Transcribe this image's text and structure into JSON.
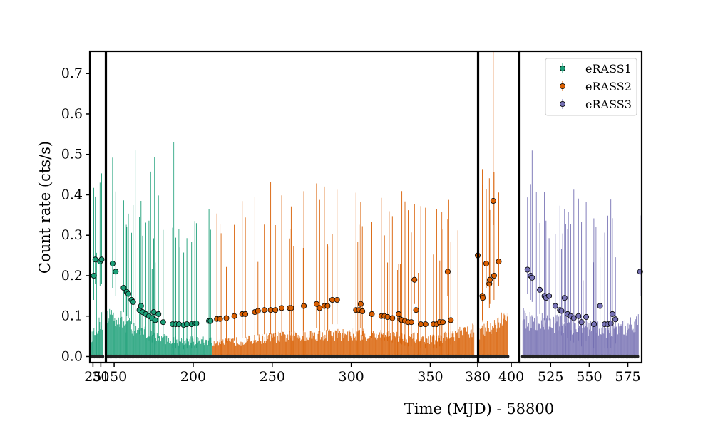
{
  "chart_data": {
    "type": "scatter",
    "xlabel": "Time (MJD) - 58800",
    "ylabel": "Count rate (cts/s)",
    "ylim": [
      -0.015,
      0.755
    ],
    "y_ticks": [
      "0.0",
      "0.1",
      "0.2",
      "0.3",
      "0.4",
      "0.5",
      "0.6",
      "0.7"
    ],
    "legend_position": "top-right",
    "colors": {
      "eRASS1": "#1b9e77",
      "eRASS2": "#d95f02",
      "eRASS3": "#7570b3",
      "axes": "#000000",
      "outlier": "#222222"
    },
    "panels": [
      {
        "xlim": [
          23,
          33
        ],
        "x_ticks": [
          {
            "v": 25,
            "label": "25"
          },
          {
            "v": 30,
            "label": "30"
          }
        ]
      },
      {
        "xlim": [
          145,
          380
        ],
        "x_ticks": [
          {
            "v": 150,
            "label": "150"
          },
          {
            "v": 200,
            "label": "200"
          },
          {
            "v": 250,
            "label": "250"
          },
          {
            "v": 300,
            "label": "300"
          },
          {
            "v": 350,
            "label": "350"
          }
        ]
      },
      {
        "xlim": [
          379,
          405
        ],
        "x_ticks": [
          {
            "v": 380,
            "label": "380"
          },
          {
            "v": 400,
            "label": "400"
          }
        ]
      },
      {
        "xlim": [
          505,
          584
        ],
        "x_ticks": [
          {
            "v": 525,
            "label": "525"
          },
          {
            "v": 550,
            "label": "550"
          },
          {
            "v": 575,
            "label": "575"
          }
        ]
      }
    ],
    "series": [
      {
        "name": "eRASS1",
        "points": [
          {
            "x": 25.5,
            "y": 0.2
          },
          {
            "x": 26.5,
            "y": 0.24
          },
          {
            "x": 29.5,
            "y": 0.235
          },
          {
            "x": 30.5,
            "y": 0.24
          },
          {
            "x": 149,
            "y": 0.23
          },
          {
            "x": 151,
            "y": 0.21
          },
          {
            "x": 156,
            "y": 0.17
          },
          {
            "x": 158,
            "y": 0.16
          },
          {
            "x": 159,
            "y": 0.155
          },
          {
            "x": 161,
            "y": 0.14
          },
          {
            "x": 162,
            "y": 0.135
          },
          {
            "x": 166,
            "y": 0.115
          },
          {
            "x": 167,
            "y": 0.125
          },
          {
            "x": 168,
            "y": 0.11
          },
          {
            "x": 170,
            "y": 0.105
          },
          {
            "x": 172,
            "y": 0.1
          },
          {
            "x": 174,
            "y": 0.095
          },
          {
            "x": 175,
            "y": 0.11
          },
          {
            "x": 176,
            "y": 0.09
          },
          {
            "x": 178,
            "y": 0.105
          },
          {
            "x": 181,
            "y": 0.085
          },
          {
            "x": 187,
            "y": 0.08
          },
          {
            "x": 189,
            "y": 0.08
          },
          {
            "x": 191,
            "y": 0.08
          },
          {
            "x": 194,
            "y": 0.078
          },
          {
            "x": 196,
            "y": 0.08
          },
          {
            "x": 199,
            "y": 0.08
          },
          {
            "x": 201,
            "y": 0.082
          },
          {
            "x": 202,
            "y": 0.082
          },
          {
            "x": 210,
            "y": 0.088
          },
          {
            "x": 211,
            "y": 0.088
          }
        ]
      },
      {
        "name": "eRASS2",
        "points": [
          {
            "x": 215,
            "y": 0.093
          },
          {
            "x": 217,
            "y": 0.093
          },
          {
            "x": 221,
            "y": 0.095
          },
          {
            "x": 226,
            "y": 0.1
          },
          {
            "x": 231,
            "y": 0.105
          },
          {
            "x": 233,
            "y": 0.105
          },
          {
            "x": 239,
            "y": 0.11
          },
          {
            "x": 241,
            "y": 0.113
          },
          {
            "x": 245,
            "y": 0.115
          },
          {
            "x": 249,
            "y": 0.115
          },
          {
            "x": 252,
            "y": 0.115
          },
          {
            "x": 256,
            "y": 0.12
          },
          {
            "x": 261,
            "y": 0.12
          },
          {
            "x": 262,
            "y": 0.12
          },
          {
            "x": 270,
            "y": 0.125
          },
          {
            "x": 278,
            "y": 0.13
          },
          {
            "x": 280,
            "y": 0.12
          },
          {
            "x": 283,
            "y": 0.125
          },
          {
            "x": 285,
            "y": 0.125
          },
          {
            "x": 288,
            "y": 0.14
          },
          {
            "x": 291,
            "y": 0.14
          },
          {
            "x": 303,
            "y": 0.115
          },
          {
            "x": 305,
            "y": 0.115
          },
          {
            "x": 306,
            "y": 0.13
          },
          {
            "x": 307,
            "y": 0.112
          },
          {
            "x": 313,
            "y": 0.105
          },
          {
            "x": 319,
            "y": 0.1
          },
          {
            "x": 321,
            "y": 0.1
          },
          {
            "x": 323,
            "y": 0.098
          },
          {
            "x": 326,
            "y": 0.095
          },
          {
            "x": 330,
            "y": 0.105
          },
          {
            "x": 331,
            "y": 0.092
          },
          {
            "x": 332,
            "y": 0.09
          },
          {
            "x": 334,
            "y": 0.088
          },
          {
            "x": 336,
            "y": 0.085
          },
          {
            "x": 338,
            "y": 0.085
          },
          {
            "x": 340,
            "y": 0.19
          },
          {
            "x": 341,
            "y": 0.115
          },
          {
            "x": 344,
            "y": 0.08
          },
          {
            "x": 347,
            "y": 0.08
          },
          {
            "x": 352,
            "y": 0.08
          },
          {
            "x": 354,
            "y": 0.08
          },
          {
            "x": 356,
            "y": 0.085
          },
          {
            "x": 358,
            "y": 0.085
          },
          {
            "x": 361,
            "y": 0.21
          },
          {
            "x": 363,
            "y": 0.09
          },
          {
            "x": 380,
            "y": 0.25
          },
          {
            "x": 381.5,
            "y": 0.15
          },
          {
            "x": 381.8,
            "y": 0.145
          },
          {
            "x": 384,
            "y": 0.23
          },
          {
            "x": 386,
            "y": 0.18
          },
          {
            "x": 386.3,
            "y": 0.19
          },
          {
            "x": 388.5,
            "y": 0.385
          },
          {
            "x": 389,
            "y": 0.2
          },
          {
            "x": 392,
            "y": 0.235
          }
        ]
      },
      {
        "name": "eRASS3",
        "points": [
          {
            "x": 510,
            "y": 0.215
          },
          {
            "x": 512,
            "y": 0.2
          },
          {
            "x": 513,
            "y": 0.195
          },
          {
            "x": 518,
            "y": 0.165
          },
          {
            "x": 521,
            "y": 0.15
          },
          {
            "x": 522,
            "y": 0.145
          },
          {
            "x": 524,
            "y": 0.15
          },
          {
            "x": 528,
            "y": 0.125
          },
          {
            "x": 531,
            "y": 0.115
          },
          {
            "x": 532,
            "y": 0.113
          },
          {
            "x": 534,
            "y": 0.145
          },
          {
            "x": 536,
            "y": 0.105
          },
          {
            "x": 538,
            "y": 0.1
          },
          {
            "x": 540,
            "y": 0.095
          },
          {
            "x": 543,
            "y": 0.1
          },
          {
            "x": 545,
            "y": 0.085
          },
          {
            "x": 548,
            "y": 0.098
          },
          {
            "x": 553,
            "y": 0.08
          },
          {
            "x": 557,
            "y": 0.125
          },
          {
            "x": 560,
            "y": 0.08
          },
          {
            "x": 562,
            "y": 0.08
          },
          {
            "x": 564,
            "y": 0.082
          },
          {
            "x": 565,
            "y": 0.105
          },
          {
            "x": 567,
            "y": 0.092
          },
          {
            "x": 583,
            "y": 0.21
          }
        ]
      }
    ]
  }
}
